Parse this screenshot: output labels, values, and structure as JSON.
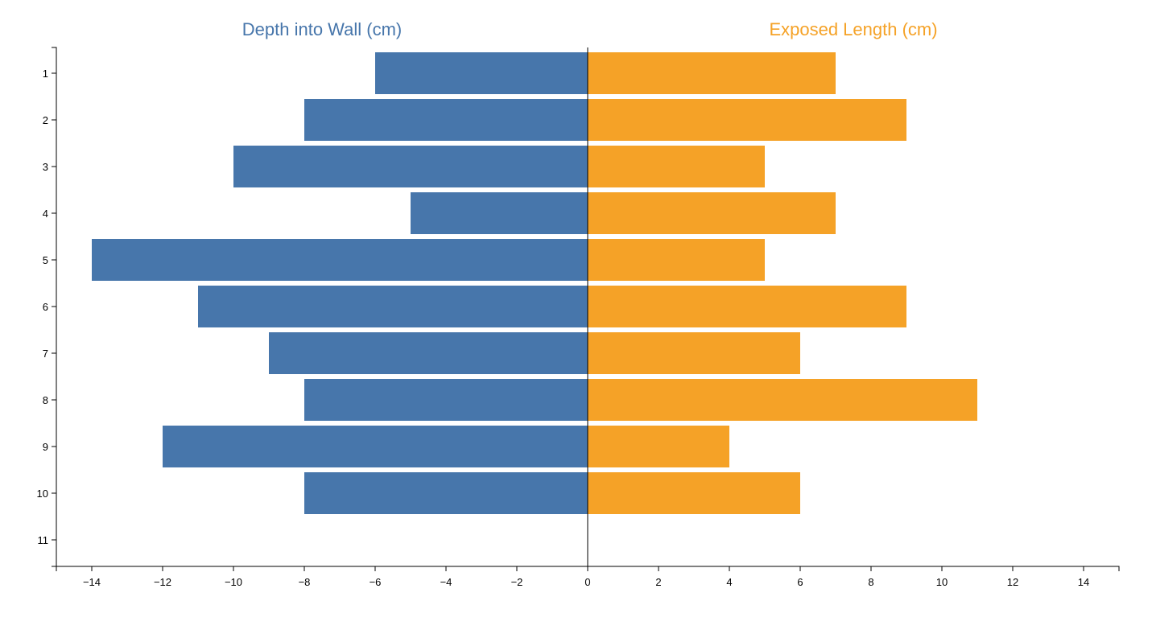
{
  "chart_data": {
    "type": "bar",
    "orientation": "horizontal-diverging",
    "categories": [
      "1",
      "2",
      "3",
      "4",
      "5",
      "6",
      "7",
      "8",
      "9",
      "10"
    ],
    "y_ticks": [
      "1",
      "2",
      "3",
      "4",
      "5",
      "6",
      "7",
      "8",
      "9",
      "10",
      "11"
    ],
    "series": [
      {
        "name": "Depth into Wall (cm)",
        "color": "#4776AB",
        "values": [
          -6,
          -8,
          -10,
          -5,
          -14,
          -11,
          -9,
          -8,
          -12,
          -8
        ]
      },
      {
        "name": "Exposed Length (cm)",
        "color": "#F5A227",
        "values": [
          7,
          9,
          5,
          7,
          5,
          9,
          6,
          11,
          4,
          6
        ]
      }
    ],
    "xlim": [
      -15,
      15
    ],
    "x_ticks": [
      -14,
      -12,
      -10,
      -8,
      -6,
      -4,
      -2,
      0,
      2,
      4,
      6,
      8,
      10,
      12,
      14
    ],
    "x_tick_labels": [
      "−14",
      "−12",
      "−10",
      "−8",
      "−6",
      "−4",
      "−2",
      "0",
      "2",
      "4",
      "6",
      "8",
      "10",
      "12",
      "14"
    ],
    "grid": false
  }
}
